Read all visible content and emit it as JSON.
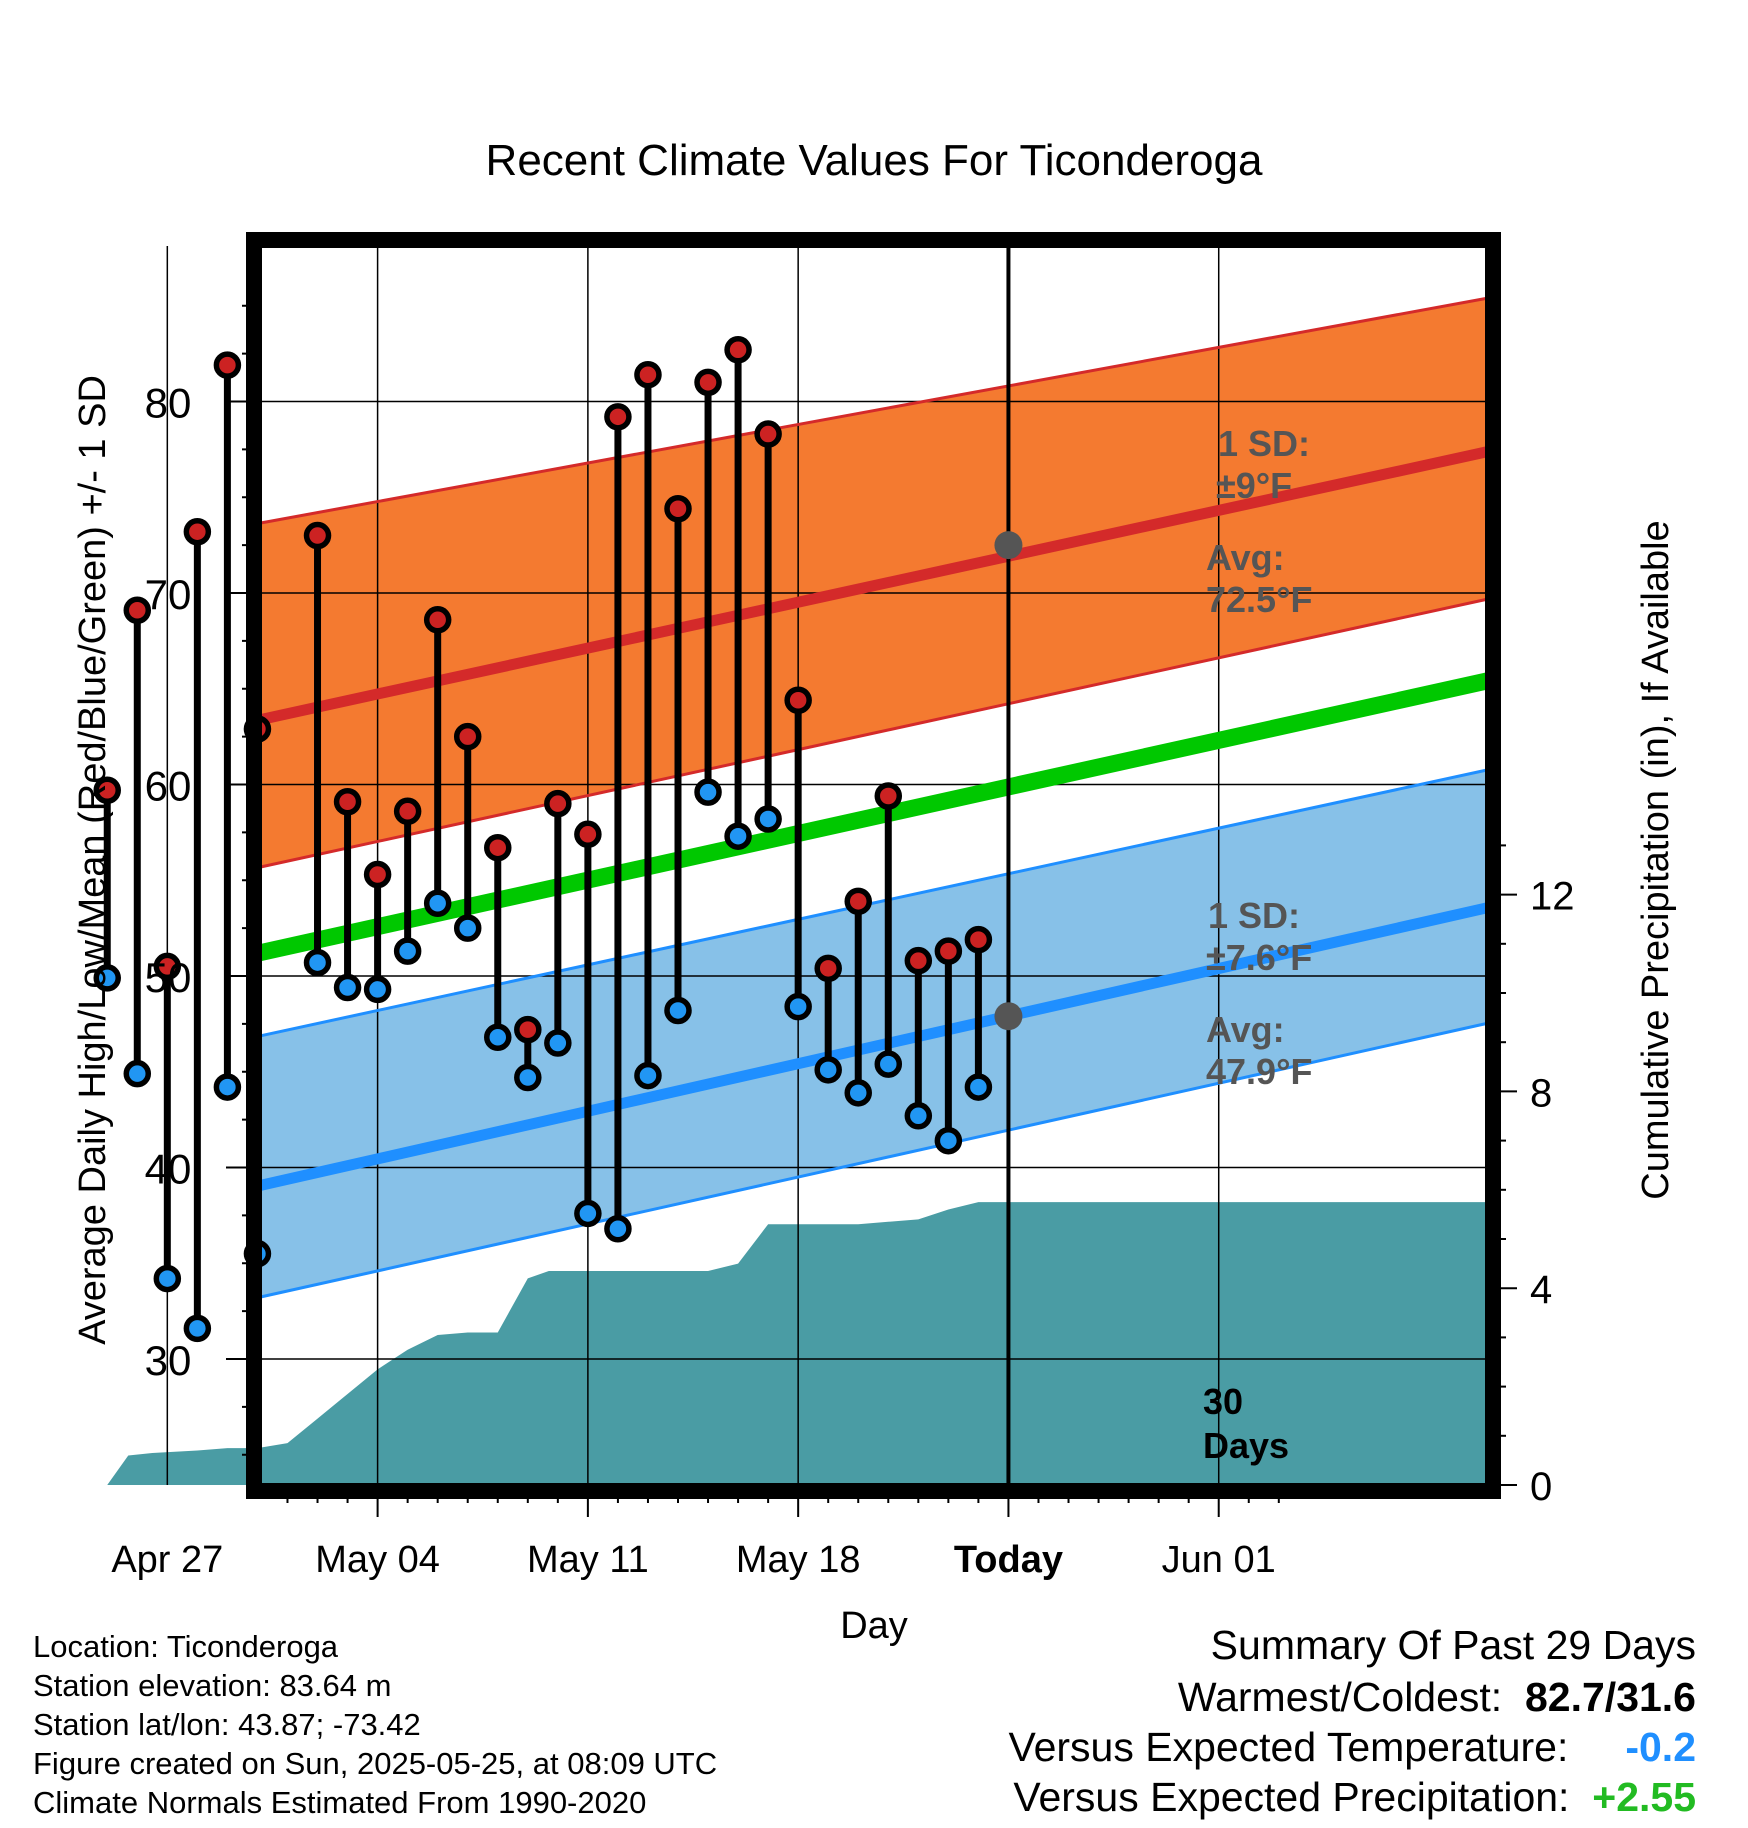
{
  "title": "Recent Climate Values For Ticonderoga",
  "xlabel": "Day",
  "ylabel_left": "Average Daily High/Low/Mean (Red/Blue/Green) +/- 1 SD",
  "ylabel_right": "Cumulative Precipitation (in), If Available",
  "colors": {
    "high_band": "#f47a30",
    "high_line": "#d42a2a",
    "high_edge": "#d42a2a",
    "low_band": "#87c1e8",
    "low_line": "#1f8fff",
    "low_edge": "#1f8fff",
    "mean_line": "#00c800",
    "precip": "#4a9ca4",
    "high_dot": "#cc2222",
    "low_dot": "#2196f3",
    "avg_dot": "#555555",
    "annot": "#555555",
    "temp_delta": "#1f8fff",
    "precip_delta": "#22bb22"
  },
  "annotations": {
    "high_sd": [
      "1 SD:",
      "±9°F"
    ],
    "high_avg": [
      "Avg:",
      "72.5°F"
    ],
    "low_sd": [
      "1 SD:",
      "±7.6°F"
    ],
    "low_avg": [
      "Avg:",
      "47.9°F"
    ],
    "today_days": [
      "30",
      "Days"
    ]
  },
  "chart_data": {
    "type": "line",
    "x_ticks": [
      {
        "day": 3,
        "label": "Apr 27"
      },
      {
        "day": 10,
        "label": "May 04"
      },
      {
        "day": 17,
        "label": "May 11"
      },
      {
        "day": 24,
        "label": "May 18"
      },
      {
        "day": 31,
        "label": "Today"
      },
      {
        "day": 38,
        "label": "Jun 01"
      }
    ],
    "xlim": [
      0,
      40
    ],
    "ylim": [
      24.1,
      87.6
    ],
    "y_ticks": [
      30,
      40,
      50,
      60,
      70,
      80
    ],
    "precip_ylim": [
      0,
      13
    ],
    "precip_ticks": [
      0,
      4,
      8,
      12
    ],
    "today_day": 31,
    "daily_temps": {
      "days": [
        1,
        2,
        3,
        4,
        5,
        6,
        8,
        9,
        10,
        11,
        12,
        13,
        14,
        15,
        16,
        17,
        18,
        19,
        20,
        21,
        22,
        23,
        24,
        25,
        26,
        27,
        28,
        29,
        30
      ],
      "high": [
        59.7,
        69.1,
        50.5,
        73.2,
        81.9,
        62.9,
        73.0,
        59.1,
        55.3,
        58.6,
        68.6,
        62.5,
        56.7,
        47.2,
        59.0,
        57.4,
        79.2,
        81.4,
        74.4,
        81.0,
        82.7,
        78.3,
        64.4,
        50.4,
        53.9,
        59.4,
        50.8,
        51.3,
        51.9
      ],
      "low": [
        49.9,
        44.9,
        34.2,
        31.6,
        44.2,
        35.5,
        50.7,
        49.4,
        49.3,
        51.3,
        53.8,
        52.5,
        46.8,
        44.7,
        46.5,
        37.6,
        36.8,
        44.8,
        48.2,
        59.6,
        57.3,
        58.2,
        48.4,
        45.1,
        43.9,
        45.4,
        42.7,
        41.4,
        44.2
      ]
    },
    "normals": {
      "days": [
        0,
        40
      ],
      "high_mean": [
        61.3,
        75.0
      ],
      "high_upper": [
        71.9,
        83.4
      ],
      "high_lower": [
        53.6,
        67.3
      ],
      "low_mean": [
        36.9,
        51.1
      ],
      "low_upper": [
        44.8,
        58.4
      ],
      "low_lower": [
        31.1,
        45.1
      ],
      "daily_mean": [
        49.1,
        63.0
      ]
    },
    "cumulative_precip": {
      "days": [
        1,
        1.7,
        2.5,
        4,
        5,
        6,
        7,
        8,
        9,
        10,
        10.5,
        11,
        12,
        13,
        13.5,
        14,
        15,
        15.7,
        17,
        20,
        21,
        22,
        23,
        24,
        25,
        26,
        27,
        28,
        29,
        30,
        35,
        40
      ],
      "values": [
        0,
        0.6,
        0.65,
        0.7,
        0.75,
        0.75,
        0.85,
        1.35,
        1.85,
        2.35,
        2.55,
        2.75,
        3.05,
        3.1,
        3.1,
        3.1,
        4.2,
        4.35,
        4.35,
        4.35,
        4.35,
        4.5,
        5.3,
        5.3,
        5.3,
        5.3,
        5.35,
        5.4,
        5.6,
        5.75,
        5.75,
        5.75
      ]
    }
  },
  "footer_info": [
    "Location: Ticonderoga",
    "Station elevation: 83.64 m",
    "Station lat/lon: 43.87; -73.42",
    "Figure created on Sun, 2025-05-25, at 08:09 UTC",
    "Climate Normals Estimated From 1990-2020"
  ],
  "summary": {
    "title": "Summary Of Past 29 Days",
    "warm_cold_label": "Warmest/Coldest:",
    "warm_cold_value": "82.7/31.6",
    "temp_label": "Versus Expected Temperature:",
    "temp_value": "-0.2",
    "precip_label": "Versus Expected Precipitation:",
    "precip_value": "+2.55"
  }
}
